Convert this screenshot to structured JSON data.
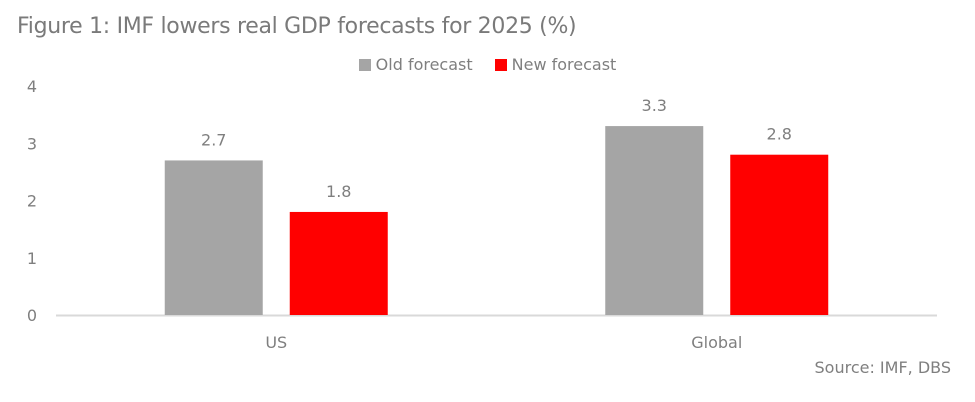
{
  "title": "Figure 1: IMF lowers real GDP forecasts for 2025 (%)",
  "source": "Source: IMF, DBS",
  "chart_data": {
    "type": "bar",
    "title": "Figure 1: IMF lowers real GDP forecasts for 2025 (%)",
    "xlabel": "",
    "ylabel": "",
    "categories": [
      "US",
      "Global"
    ],
    "series": [
      {
        "name": "Old forecast",
        "color": "#a5a5a5",
        "values": [
          2.7,
          3.3
        ]
      },
      {
        "name": "New forecast",
        "color": "#ff0000",
        "values": [
          1.8,
          2.8
        ]
      }
    ],
    "ylim": [
      0,
      4
    ],
    "yticks": [
      "0",
      "1",
      "2",
      "3",
      "4"
    ],
    "data_labels": [
      [
        "2.7",
        "3.3"
      ],
      [
        "1.8",
        "2.8"
      ]
    ],
    "grid": false,
    "legend": "top-center",
    "axis_color": "#d9d9d9"
  }
}
